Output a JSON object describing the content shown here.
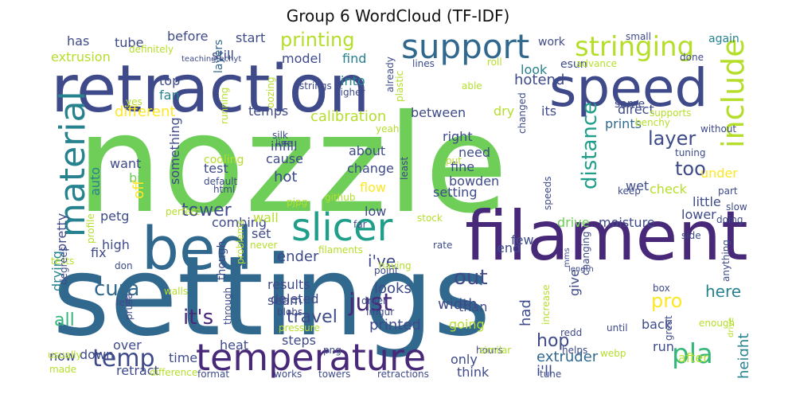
{
  "title": "Group 6 WordCloud (TF-IDF)",
  "palette": [
    "#482878",
    "#3e4a89",
    "#31688e",
    "#26828e",
    "#1f9e89",
    "#35b779",
    "#6ece58",
    "#b5de2b",
    "#fde725"
  ],
  "words": [
    {
      "text": "nozzle",
      "color": "#6ece58"
    },
    {
      "text": "settings",
      "color": "#31688e"
    },
    {
      "text": "retraction",
      "color": "#3e4a89"
    },
    {
      "text": "filament",
      "color": "#482878"
    },
    {
      "text": "speed",
      "color": "#3e4a89"
    },
    {
      "text": "bed",
      "color": "#31688e"
    },
    {
      "text": "temperature",
      "color": "#482878"
    },
    {
      "text": "support",
      "color": "#31688e"
    },
    {
      "text": "slicer",
      "color": "#1f9e89"
    },
    {
      "text": "include",
      "color": "#b5de2b"
    },
    {
      "text": "material",
      "color": "#26828e"
    },
    {
      "text": "stringing",
      "color": "#b5de2b"
    },
    {
      "text": "temp",
      "color": "#3e4a89"
    },
    {
      "text": "pla",
      "color": "#35b779"
    },
    {
      "text": "cura",
      "color": "#31688e"
    },
    {
      "text": "just",
      "color": "#482878"
    },
    {
      "text": "distance",
      "color": "#1f9e89"
    },
    {
      "text": "layer",
      "color": "#3e4a89"
    },
    {
      "text": "it's",
      "color": "#482878"
    },
    {
      "text": "out",
      "color": "#3e4a89"
    },
    {
      "text": "printing",
      "color": "#b5de2b"
    },
    {
      "text": "too",
      "color": "#3e4a89"
    },
    {
      "text": "tower",
      "color": "#3e4a89"
    },
    {
      "text": "pro",
      "color": "#fde725"
    },
    {
      "text": "here",
      "color": "#26828e"
    },
    {
      "text": "height",
      "color": "#26828e"
    },
    {
      "text": "travel",
      "color": "#3e4a89"
    },
    {
      "text": "all",
      "color": "#35b779"
    },
    {
      "text": "hop",
      "color": "#3e4a89"
    },
    {
      "text": "extruder",
      "color": "#31688e"
    },
    {
      "text": "i'll",
      "color": "#3e4a89"
    },
    {
      "text": "had",
      "color": "#3e4a89"
    },
    {
      "text": "looks",
      "color": "#3e4a89"
    },
    {
      "text": "printed",
      "color": "#3e4a89"
    },
    {
      "text": "width",
      "color": "#3e4a89"
    },
    {
      "text": "i've",
      "color": "#3e4a89"
    },
    {
      "text": "ender",
      "color": "#3e4a89"
    },
    {
      "text": "calibration",
      "color": "#b5de2b"
    },
    {
      "text": "hotend",
      "color": "#3e4a89"
    },
    {
      "text": "tube",
      "color": "#3e4a89"
    },
    {
      "text": "before",
      "color": "#3e4a89"
    },
    {
      "text": "start",
      "color": "#3e4a89"
    },
    {
      "text": "has",
      "color": "#3e4a89"
    },
    {
      "text": "extrusion",
      "color": "#b5de2b"
    },
    {
      "text": "still",
      "color": "#3e4a89"
    },
    {
      "text": "model",
      "color": "#3e4a89"
    },
    {
      "text": "find",
      "color": "#26828e"
    },
    {
      "text": "work",
      "color": "#3e4a89"
    },
    {
      "text": "again",
      "color": "#26828e"
    },
    {
      "text": "esun",
      "color": "#3e4a89"
    },
    {
      "text": "look",
      "color": "#26828e"
    },
    {
      "text": "into",
      "color": "#26828e"
    },
    {
      "text": "top",
      "color": "#3e4a89"
    },
    {
      "text": "fan",
      "color": "#26828e"
    },
    {
      "text": "layers",
      "color": "#31688e"
    },
    {
      "text": "same",
      "color": "#3e4a89"
    },
    {
      "text": "direct",
      "color": "#3e4a89"
    },
    {
      "text": "prints",
      "color": "#31688e"
    },
    {
      "text": "different",
      "color": "#fde725"
    },
    {
      "text": "temps",
      "color": "#3e4a89"
    },
    {
      "text": "between",
      "color": "#3e4a89"
    },
    {
      "text": "dry",
      "color": "#b5de2b"
    },
    {
      "text": "its",
      "color": "#3e4a89"
    },
    {
      "text": "right",
      "color": "#3e4a89"
    },
    {
      "text": "need",
      "color": "#3e4a89"
    },
    {
      "text": "infill",
      "color": "#3e4a89"
    },
    {
      "text": "about",
      "color": "#3e4a89"
    },
    {
      "text": "cause",
      "color": "#3e4a89"
    },
    {
      "text": "change",
      "color": "#3e4a89"
    },
    {
      "text": "fine",
      "color": "#3e4a89"
    },
    {
      "text": "bowden",
      "color": "#3e4a89"
    },
    {
      "text": "setting",
      "color": "#3e4a89"
    },
    {
      "text": "flow",
      "color": "#fde725"
    },
    {
      "text": "low",
      "color": "#3e4a89"
    },
    {
      "text": "hot",
      "color": "#3e4a89"
    },
    {
      "text": "test",
      "color": "#3e4a89"
    },
    {
      "text": "bit",
      "color": "#6ece58"
    },
    {
      "text": "want",
      "color": "#3e4a89"
    },
    {
      "text": "auto",
      "color": "#26828e"
    },
    {
      "text": "something",
      "color": "#3e4a89"
    },
    {
      "text": "off",
      "color": "#fde725"
    },
    {
      "text": "pretty",
      "color": "#3e4a89"
    },
    {
      "text": "petg",
      "color": "#3e4a89"
    },
    {
      "text": "combing",
      "color": "#3e4a89"
    },
    {
      "text": "wall",
      "color": "#b5de2b"
    },
    {
      "text": "set",
      "color": "#3e4a89"
    },
    {
      "text": "high",
      "color": "#3e4a89"
    },
    {
      "text": "fix",
      "color": "#3e4a89"
    },
    {
      "text": "drying",
      "color": "#26828e"
    },
    {
      "text": "check",
      "color": "#b5de2b"
    },
    {
      "text": "wet",
      "color": "#3e4a89"
    },
    {
      "text": "under",
      "color": "#fde725"
    },
    {
      "text": "little",
      "color": "#3e4a89"
    },
    {
      "text": "lower",
      "color": "#3e4a89"
    },
    {
      "text": "moisture",
      "color": "#3e4a89"
    },
    {
      "text": "drive",
      "color": "#6ece58"
    },
    {
      "text": "few",
      "color": "#3e4a89"
    },
    {
      "text": "end",
      "color": "#3e4a89"
    },
    {
      "text": "results",
      "color": "#3e4a89"
    },
    {
      "text": "deleted",
      "color": "#3e4a89"
    },
    {
      "text": "seam",
      "color": "#3e4a89"
    },
    {
      "text": "than",
      "color": "#3e4a89"
    },
    {
      "text": "going",
      "color": "#b5de2b"
    },
    {
      "text": "back",
      "color": "#3e4a89"
    },
    {
      "text": "give",
      "color": "#3e4a89"
    },
    {
      "text": "heat",
      "color": "#3e4a89"
    },
    {
      "text": "over",
      "color": "#3e4a89"
    },
    {
      "text": "time",
      "color": "#3e4a89"
    },
    {
      "text": "steps",
      "color": "#3e4a89"
    },
    {
      "text": "only",
      "color": "#3e4a89"
    },
    {
      "text": "think",
      "color": "#3e4a89"
    },
    {
      "text": "down",
      "color": "#3e4a89"
    },
    {
      "text": "retract",
      "color": "#3e4a89"
    },
    {
      "text": "now",
      "color": "#3e4a89"
    },
    {
      "text": "after",
      "color": "#b5de2b"
    },
    {
      "text": "run",
      "color": "#3e4a89"
    },
    {
      "text": "though",
      "color": "#3e4a89"
    },
    {
      "text": "usually",
      "color": "#b5de2b"
    },
    {
      "text": "works",
      "color": "#3e4a89"
    },
    {
      "text": "towers",
      "color": "#3e4a89"
    },
    {
      "text": "retractions",
      "color": "#3e4a89"
    },
    {
      "text": "format",
      "color": "#3e4a89"
    },
    {
      "text": "tune",
      "color": "#3e4a89"
    },
    {
      "text": "hours",
      "color": "#3e4a89"
    },
    {
      "text": "webp",
      "color": "#b5de2b"
    },
    {
      "text": "enough",
      "color": "#b5de2b"
    },
    {
      "text": "box",
      "color": "#3e4a89"
    },
    {
      "text": "anything",
      "color": "#3e4a89"
    },
    {
      "text": "great",
      "color": "#3e4a89"
    },
    {
      "text": "redd",
      "color": "#3e4a89"
    },
    {
      "text": "until",
      "color": "#3e4a89"
    },
    {
      "text": "walls",
      "color": "#b5de2b"
    },
    {
      "text": "blobs",
      "color": "#3e4a89"
    },
    {
      "text": "pressure",
      "color": "#b5de2b"
    },
    {
      "text": "dryer",
      "color": "#3e4a89"
    },
    {
      "text": "imgur",
      "color": "#3e4a89"
    },
    {
      "text": "having",
      "color": "#b5de2b"
    },
    {
      "text": "point",
      "color": "#3e4a89"
    },
    {
      "text": "filaments",
      "color": "#b5de2b"
    },
    {
      "text": "stock",
      "color": "#b5de2b"
    },
    {
      "text": "rate",
      "color": "#3e4a89"
    },
    {
      "text": "far",
      "color": "#3e4a89"
    },
    {
      "text": "never",
      "color": "#b5de2b"
    },
    {
      "text": "problems",
      "color": "#b5de2b"
    },
    {
      "text": "tests",
      "color": "#b5de2b"
    },
    {
      "text": "don",
      "color": "#3e4a89"
    },
    {
      "text": "prusa",
      "color": "#3e4a89"
    },
    {
      "text": "through",
      "color": "#3e4a89"
    },
    {
      "text": "increase",
      "color": "#b5de2b"
    },
    {
      "text": "similar",
      "color": "#b5de2b"
    },
    {
      "text": "helps",
      "color": "#3e4a89"
    },
    {
      "text": "difference",
      "color": "#b5de2b"
    },
    {
      "text": "made",
      "color": "#b5de2b"
    },
    {
      "text": "png",
      "color": "#3e4a89"
    },
    {
      "text": "github",
      "color": "#b5de2b"
    },
    {
      "text": "pjpg",
      "color": "#b5de2b"
    },
    {
      "text": "put",
      "color": "#b5de2b"
    },
    {
      "text": "speeds",
      "color": "#3e4a89"
    },
    {
      "text": "changing",
      "color": "#3e4a89"
    },
    {
      "text": "default",
      "color": "#3e4a89"
    },
    {
      "text": "html",
      "color": "#3e4a89"
    },
    {
      "text": "cooling",
      "color": "#b5de2b"
    },
    {
      "text": "profile",
      "color": "#b5de2b"
    },
    {
      "text": "perfect",
      "color": "#b5de2b"
    },
    {
      "text": "degrees",
      "color": "#3e4a89"
    },
    {
      "text": "left",
      "color": "#3e4a89"
    },
    {
      "text": "silk",
      "color": "#3e4a89"
    },
    {
      "text": "line",
      "color": "#3e4a89"
    },
    {
      "text": "yeah",
      "color": "#b5de2b"
    },
    {
      "text": "least",
      "color": "#3e4a89"
    },
    {
      "text": "changed",
      "color": "#3e4a89"
    },
    {
      "text": "benchy",
      "color": "#b5de2b"
    },
    {
      "text": "supports",
      "color": "#b5de2b"
    },
    {
      "text": "without",
      "color": "#3e4a89"
    },
    {
      "text": "tuning",
      "color": "#3e4a89"
    },
    {
      "text": "keep",
      "color": "#3e4a89"
    },
    {
      "text": "part",
      "color": "#3e4a89"
    },
    {
      "text": "doing",
      "color": "#3e4a89"
    },
    {
      "text": "slow",
      "color": "#3e4a89"
    },
    {
      "text": "side",
      "color": "#3e4a89"
    },
    {
      "text": "oozing",
      "color": "#b5de2b"
    },
    {
      "text": "running",
      "color": "#b5de2b"
    },
    {
      "text": "strings",
      "color": "#3e4a89"
    },
    {
      "text": "higher",
      "color": "#3e4a89"
    },
    {
      "text": "yes",
      "color": "#b5de2b"
    },
    {
      "text": "already",
      "color": "#3e4a89"
    },
    {
      "text": "plastic",
      "color": "#b5de2b"
    },
    {
      "text": "able",
      "color": "#b5de2b"
    },
    {
      "text": "lines",
      "color": "#3e4a89"
    },
    {
      "text": "roll",
      "color": "#b5de2b"
    },
    {
      "text": "advance",
      "color": "#b5de2b"
    },
    {
      "text": "small",
      "color": "#3e4a89"
    },
    {
      "text": "done",
      "color": "#3e4a89"
    },
    {
      "text": "definitely",
      "color": "#b5de2b"
    },
    {
      "text": "teachingtechyt",
      "color": "#3e4a89"
    },
    {
      "text": "mms",
      "color": "#3e4a89"
    },
    {
      "text": "length",
      "color": "#3e4a89"
    },
    {
      "text": "drive",
      "color": "#b5de2b"
    }
  ]
}
